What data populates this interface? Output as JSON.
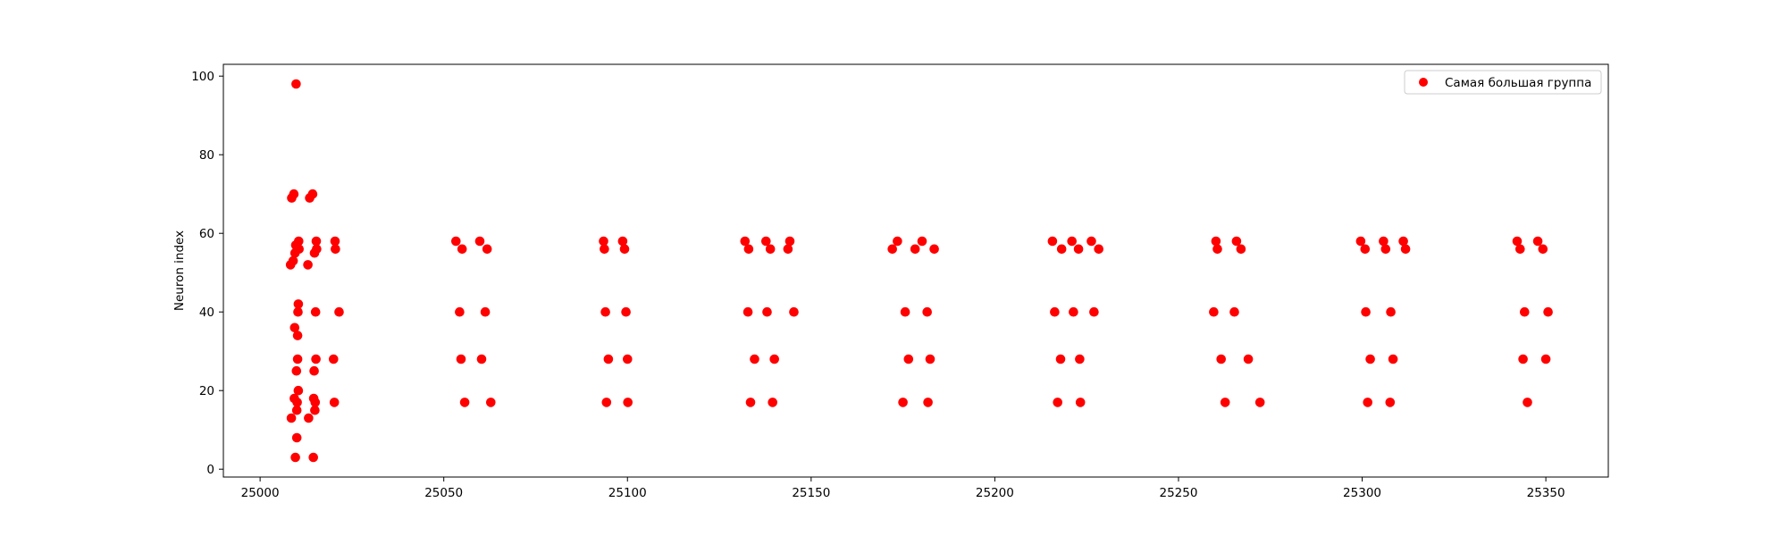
{
  "chart_data": {
    "type": "scatter",
    "title": "",
    "xlabel": "",
    "ylabel": "Neuron index",
    "xlim": [
      24990,
      25367
    ],
    "ylim": [
      -2,
      103
    ],
    "xticks": [
      25000,
      25050,
      25100,
      25150,
      25200,
      25250,
      25300,
      25350
    ],
    "yticks": [
      0,
      20,
      40,
      60,
      80,
      100
    ],
    "grid": false,
    "legend_position": "top-right",
    "series": [
      {
        "name": "Самая большая группа",
        "color": "#ff0000",
        "points": [
          [
            25008.5,
            13
          ],
          [
            25008.3,
            52
          ],
          [
            25008.6,
            69
          ],
          [
            25009.0,
            53
          ],
          [
            25009.2,
            70
          ],
          [
            25009.3,
            18
          ],
          [
            25009.4,
            36
          ],
          [
            25009.5,
            55
          ],
          [
            25009.6,
            3
          ],
          [
            25009.7,
            57
          ],
          [
            25009.8,
            98
          ],
          [
            25009.9,
            25
          ],
          [
            25010.0,
            15
          ],
          [
            25010.1,
            17
          ],
          [
            25010.2,
            34
          ],
          [
            25010.3,
            40
          ],
          [
            25010.4,
            42
          ],
          [
            25010.5,
            58
          ],
          [
            25010.0,
            8
          ],
          [
            25010.2,
            28
          ],
          [
            25010.4,
            20
          ],
          [
            25010.6,
            56
          ],
          [
            25013.0,
            52
          ],
          [
            25013.2,
            13
          ],
          [
            25013.5,
            69
          ],
          [
            25014.3,
            70
          ],
          [
            25014.5,
            3
          ],
          [
            25014.6,
            18
          ],
          [
            25014.7,
            25
          ],
          [
            25014.8,
            55
          ],
          [
            25014.9,
            15
          ],
          [
            25015.0,
            17
          ],
          [
            25015.1,
            40
          ],
          [
            25015.2,
            28
          ],
          [
            25015.3,
            58
          ],
          [
            25015.4,
            56
          ],
          [
            25020.0,
            28
          ],
          [
            25020.2,
            17
          ],
          [
            25020.4,
            58
          ],
          [
            25020.5,
            56
          ],
          [
            25021.5,
            40
          ],
          [
            25053.3,
            58
          ],
          [
            25054.3,
            40
          ],
          [
            25054.7,
            28
          ],
          [
            25055.0,
            56
          ],
          [
            25055.7,
            17
          ],
          [
            25059.8,
            58
          ],
          [
            25060.3,
            28
          ],
          [
            25061.3,
            40
          ],
          [
            25061.8,
            56
          ],
          [
            25062.8,
            17
          ],
          [
            25093.5,
            58
          ],
          [
            25093.7,
            56
          ],
          [
            25094.0,
            40
          ],
          [
            25094.3,
            17
          ],
          [
            25094.8,
            28
          ],
          [
            25098.7,
            58
          ],
          [
            25099.2,
            56
          ],
          [
            25099.6,
            40
          ],
          [
            25100.0,
            28
          ],
          [
            25100.1,
            17
          ],
          [
            25132.0,
            58
          ],
          [
            25132.8,
            40
          ],
          [
            25133.0,
            56
          ],
          [
            25133.5,
            17
          ],
          [
            25134.6,
            28
          ],
          [
            25137.7,
            58
          ],
          [
            25138.0,
            40
          ],
          [
            25138.9,
            56
          ],
          [
            25139.5,
            17
          ],
          [
            25140.0,
            28
          ],
          [
            25143.7,
            56
          ],
          [
            25144.2,
            58
          ],
          [
            25145.3,
            40
          ],
          [
            25172.1,
            56
          ],
          [
            25173.5,
            58
          ],
          [
            25175.0,
            17
          ],
          [
            25175.6,
            40
          ],
          [
            25176.5,
            28
          ],
          [
            25178.3,
            56
          ],
          [
            25180.2,
            58
          ],
          [
            25181.6,
            40
          ],
          [
            25181.8,
            17
          ],
          [
            25182.4,
            28
          ],
          [
            25183.5,
            56
          ],
          [
            25215.7,
            58
          ],
          [
            25216.3,
            40
          ],
          [
            25217.1,
            17
          ],
          [
            25217.9,
            28
          ],
          [
            25218.2,
            56
          ],
          [
            25221.0,
            58
          ],
          [
            25221.4,
            40
          ],
          [
            25222.8,
            56
          ],
          [
            25223.1,
            28
          ],
          [
            25223.3,
            17
          ],
          [
            25226.3,
            58
          ],
          [
            25227.0,
            40
          ],
          [
            25228.3,
            56
          ],
          [
            25259.6,
            40
          ],
          [
            25260.2,
            58
          ],
          [
            25260.6,
            56
          ],
          [
            25261.6,
            28
          ],
          [
            25262.7,
            17
          ],
          [
            25265.2,
            40
          ],
          [
            25265.8,
            58
          ],
          [
            25267.0,
            56
          ],
          [
            25269.0,
            28
          ],
          [
            25272.2,
            17
          ],
          [
            25299.6,
            58
          ],
          [
            25300.8,
            56
          ],
          [
            25301.0,
            40
          ],
          [
            25301.5,
            17
          ],
          [
            25302.2,
            28
          ],
          [
            25305.8,
            58
          ],
          [
            25306.4,
            56
          ],
          [
            25307.6,
            17
          ],
          [
            25307.8,
            40
          ],
          [
            25308.4,
            28
          ],
          [
            25311.2,
            58
          ],
          [
            25311.8,
            56
          ],
          [
            25342.2,
            58
          ],
          [
            25343.0,
            56
          ],
          [
            25343.8,
            28
          ],
          [
            25344.2,
            40
          ],
          [
            25345.0,
            17
          ],
          [
            25347.8,
            58
          ],
          [
            25349.2,
            56
          ],
          [
            25350.0,
            28
          ],
          [
            25350.6,
            40
          ]
        ]
      }
    ]
  }
}
